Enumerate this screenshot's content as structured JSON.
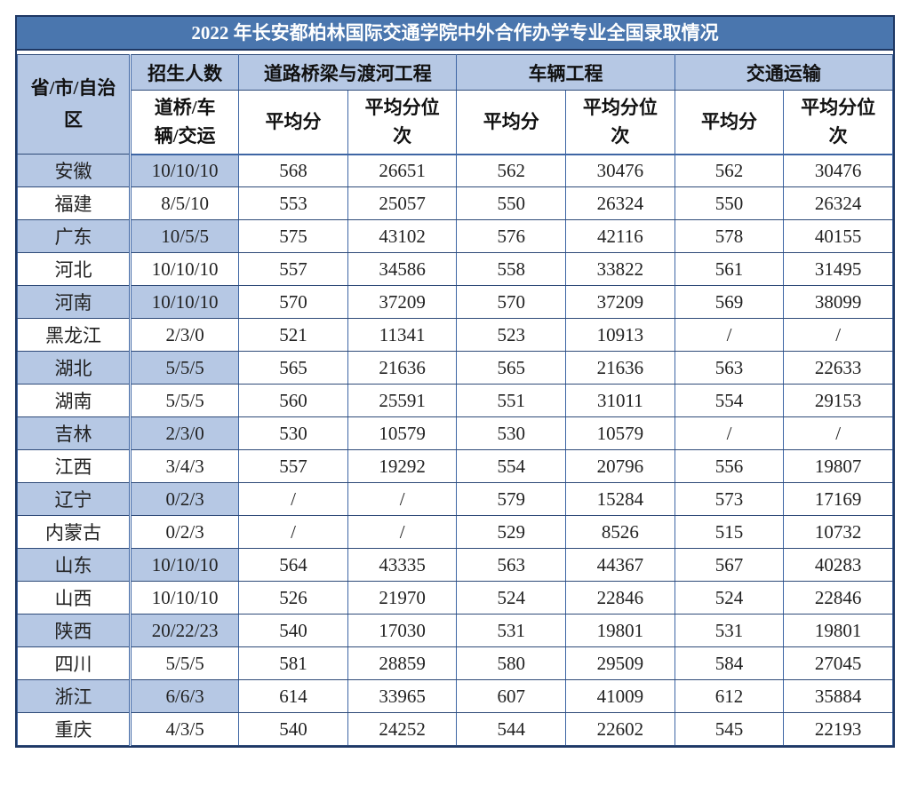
{
  "title": "2022 年长安都柏林国际交通学院中外合作办学专业全国录取情况",
  "colors": {
    "title_bg": "#4A76AE",
    "title_text": "#FFFFFF",
    "header_and_row_band_blue": "#B6C8E4",
    "outer_border_navy": "#1F3864",
    "grid_border_blue": "#3E66A4",
    "text": "#222222"
  },
  "table": {
    "header": {
      "province": "省/市/自治区",
      "enrollment": "招生人数",
      "enrollment_detail": "道桥/车辆/交运",
      "group_headers": [
        "道路桥梁与渡河工程",
        "车辆工程",
        "交通运输"
      ],
      "avg_score_label": "平均分",
      "avg_rank_label": "平均分位次"
    },
    "rows": [
      {
        "province": "安徽",
        "enrollment": "10/10/10",
        "cells": [
          "568",
          "26651",
          "562",
          "30476",
          "562",
          "30476"
        ]
      },
      {
        "province": "福建",
        "enrollment": "8/5/10",
        "cells": [
          "553",
          "25057",
          "550",
          "26324",
          "550",
          "26324"
        ]
      },
      {
        "province": "广东",
        "enrollment": "10/5/5",
        "cells": [
          "575",
          "43102",
          "576",
          "42116",
          "578",
          "40155"
        ]
      },
      {
        "province": "河北",
        "enrollment": "10/10/10",
        "cells": [
          "557",
          "34586",
          "558",
          "33822",
          "561",
          "31495"
        ]
      },
      {
        "province": "河南",
        "enrollment": "10/10/10",
        "cells": [
          "570",
          "37209",
          "570",
          "37209",
          "569",
          "38099"
        ]
      },
      {
        "province": "黑龙江",
        "enrollment": "2/3/0",
        "cells": [
          "521",
          "11341",
          "523",
          "10913",
          "/",
          "/"
        ]
      },
      {
        "province": "湖北",
        "enrollment": "5/5/5",
        "cells": [
          "565",
          "21636",
          "565",
          "21636",
          "563",
          "22633"
        ]
      },
      {
        "province": "湖南",
        "enrollment": "5/5/5",
        "cells": [
          "560",
          "25591",
          "551",
          "31011",
          "554",
          "29153"
        ]
      },
      {
        "province": "吉林",
        "enrollment": "2/3/0",
        "cells": [
          "530",
          "10579",
          "530",
          "10579",
          "/",
          "/"
        ]
      },
      {
        "province": "江西",
        "enrollment": "3/4/3",
        "cells": [
          "557",
          "19292",
          "554",
          "20796",
          "556",
          "19807"
        ]
      },
      {
        "province": "辽宁",
        "enrollment": "0/2/3",
        "cells": [
          "/",
          "/",
          "579",
          "15284",
          "573",
          "17169"
        ]
      },
      {
        "province": "内蒙古",
        "enrollment": "0/2/3",
        "cells": [
          "/",
          "/",
          "529",
          "8526",
          "515",
          "10732"
        ]
      },
      {
        "province": "山东",
        "enrollment": "10/10/10",
        "cells": [
          "564",
          "43335",
          "563",
          "44367",
          "567",
          "40283"
        ]
      },
      {
        "province": "山西",
        "enrollment": "10/10/10",
        "cells": [
          "526",
          "21970",
          "524",
          "22846",
          "524",
          "22846"
        ]
      },
      {
        "province": "陕西",
        "enrollment": "20/22/23",
        "cells": [
          "540",
          "17030",
          "531",
          "19801",
          "531",
          "19801"
        ]
      },
      {
        "province": "四川",
        "enrollment": "5/5/5",
        "cells": [
          "581",
          "28859",
          "580",
          "29509",
          "584",
          "27045"
        ]
      },
      {
        "province": "浙江",
        "enrollment": "6/6/3",
        "cells": [
          "614",
          "33965",
          "607",
          "41009",
          "612",
          "35884"
        ]
      },
      {
        "province": "重庆",
        "enrollment": "4/3/5",
        "cells": [
          "540",
          "24252",
          "544",
          "22602",
          "545",
          "22193"
        ]
      }
    ]
  }
}
